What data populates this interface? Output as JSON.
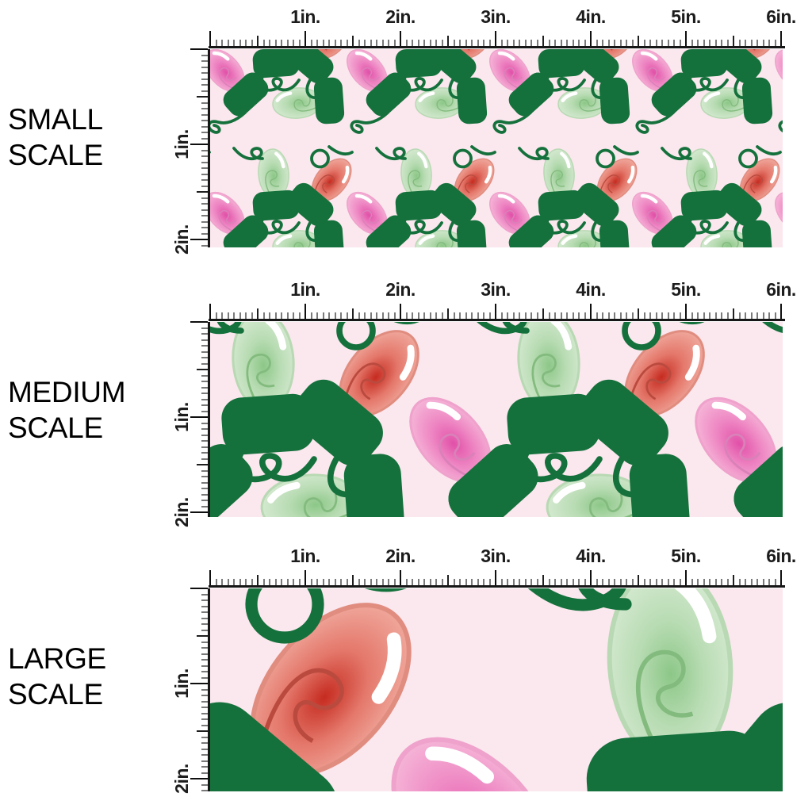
{
  "sheet": {
    "description": "Fabric pattern scale comparison sheet with ruler measurements",
    "unit": "in."
  },
  "rulers": {
    "top_labels": [
      "1in.",
      "2in.",
      "3in.",
      "4in.",
      "5in.",
      "6in."
    ],
    "side_labels": [
      "1in.",
      "2in."
    ]
  },
  "panels": [
    {
      "name": "SMALL SCALE",
      "line1": "SMALL",
      "line2": "SCALE",
      "scale_factor": 1
    },
    {
      "name": "MEDIUM SCALE",
      "line1": "MEDIUM",
      "line2": "SCALE",
      "scale_factor": 2
    },
    {
      "name": "LARGE SCALE",
      "line1": "LARGE",
      "line2": "SCALE",
      "scale_factor": 4
    }
  ],
  "pattern": {
    "theme": "christmas-string-lights",
    "background": "#fbe7ee",
    "cord_color": "#15713c",
    "socket_color": "#15713c",
    "highlight_color": "#ffffff",
    "bulb_colors": {
      "red": {
        "center": "#c62b20",
        "mid": "#e4786b",
        "edge": "#f3b2a7",
        "outline": "#e08d80",
        "filament": "#bb4a3e"
      },
      "pink": {
        "center": "#e150a8",
        "mid": "#ee86c3",
        "edge": "#f7c0dc",
        "outline": "#efa2cc",
        "filament": "#d981b8"
      },
      "green": {
        "center": "#8cc787",
        "mid": "#b9dcb4",
        "edge": "#daecd6",
        "outline": "#b8d9b3",
        "filament": "#83bb7e"
      }
    }
  }
}
